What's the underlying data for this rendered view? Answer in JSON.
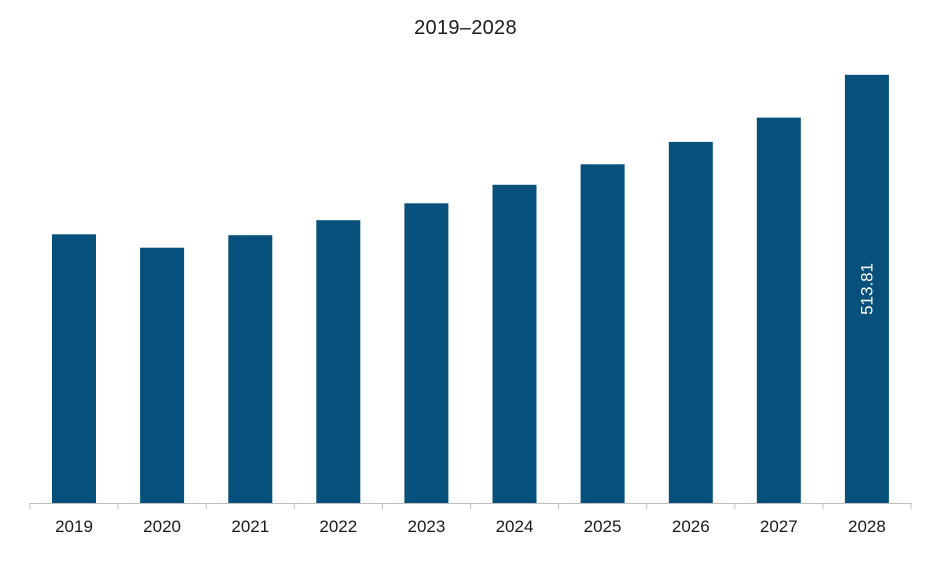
{
  "chart_data": {
    "type": "bar",
    "title": "2019–2028",
    "xlabel": "",
    "ylabel": "",
    "categories": [
      "2019",
      "2020",
      "2021",
      "2022",
      "2023",
      "2024",
      "2025",
      "2026",
      "2027",
      "2028"
    ],
    "values": [
      322.5,
      306.3,
      321.4,
      339.4,
      359.7,
      381.9,
      406.5,
      433.3,
      462.5,
      513.81
    ],
    "data_labels": [
      "",
      "",
      "",
      "",
      "",
      "",
      "",
      "",
      "",
      "513.81"
    ],
    "ylim": [
      0,
      540
    ],
    "grid": false,
    "legend": "none",
    "colors": {
      "bar": "#08507C",
      "axis": "#BFBFBF",
      "text": "#1A1A1A"
    }
  }
}
